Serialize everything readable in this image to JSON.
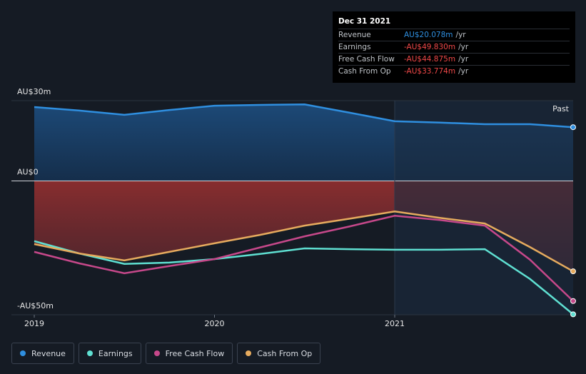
{
  "chart_data": {
    "type": "line",
    "x": [
      2019,
      2019.25,
      2019.5,
      2019.75,
      2020,
      2020.25,
      2020.5,
      2020.75,
      2021,
      2021.25,
      2021.5,
      2021.75,
      2021.99
    ],
    "xlim": [
      2019,
      2021.99
    ],
    "xticks": [
      2019,
      2020,
      2021
    ],
    "ylim": [
      -50,
      30
    ],
    "yticks": [
      {
        "value": 30,
        "label": "AU$30m"
      },
      {
        "value": 0,
        "label": "AU$0"
      },
      {
        "value": -50,
        "label": "-AU$50m"
      }
    ],
    "series": [
      {
        "name": "Revenue",
        "color": "#2f8fe0",
        "values": [
          27.6,
          26.3,
          24.7,
          26.5,
          28.1,
          28.4,
          28.6,
          25.5,
          22.3,
          21.8,
          21.2,
          21.2,
          20.078
        ]
      },
      {
        "name": "Earnings",
        "color": "#5fe0d2",
        "values": [
          -22.5,
          -27.1,
          -31,
          -30.5,
          -29.2,
          -27.3,
          -25.2,
          -25.5,
          -25.7,
          -25.7,
          -25.5,
          -36.6,
          -49.83
        ]
      },
      {
        "name": "Free Cash Flow",
        "color": "#c6488a",
        "values": [
          -26.5,
          -30.8,
          -34.5,
          -31.8,
          -29.2,
          -24.9,
          -20.7,
          -17,
          -13,
          -14.6,
          -16.7,
          -29.4,
          -44.875
        ]
      },
      {
        "name": "Cash From Op",
        "color": "#e6ab5e",
        "values": [
          -23.6,
          -27.1,
          -29.7,
          -26.5,
          -23.3,
          -20.2,
          -16.7,
          -14.1,
          -11.4,
          -13.8,
          -15.9,
          -24.7,
          -33.774
        ]
      }
    ],
    "annotation": "Past",
    "tooltip": {
      "title": "Dec 31 2021",
      "rows": [
        {
          "label": "Revenue",
          "value": "AU$20.078m",
          "unit": "/yr"
        },
        {
          "label": "Earnings",
          "value": "-AU$49.830m",
          "unit": "/yr"
        },
        {
          "label": "Free Cash Flow",
          "value": "-AU$44.875m",
          "unit": "/yr"
        },
        {
          "label": "Cash From Op",
          "value": "-AU$33.774m",
          "unit": "/yr"
        }
      ]
    }
  }
}
